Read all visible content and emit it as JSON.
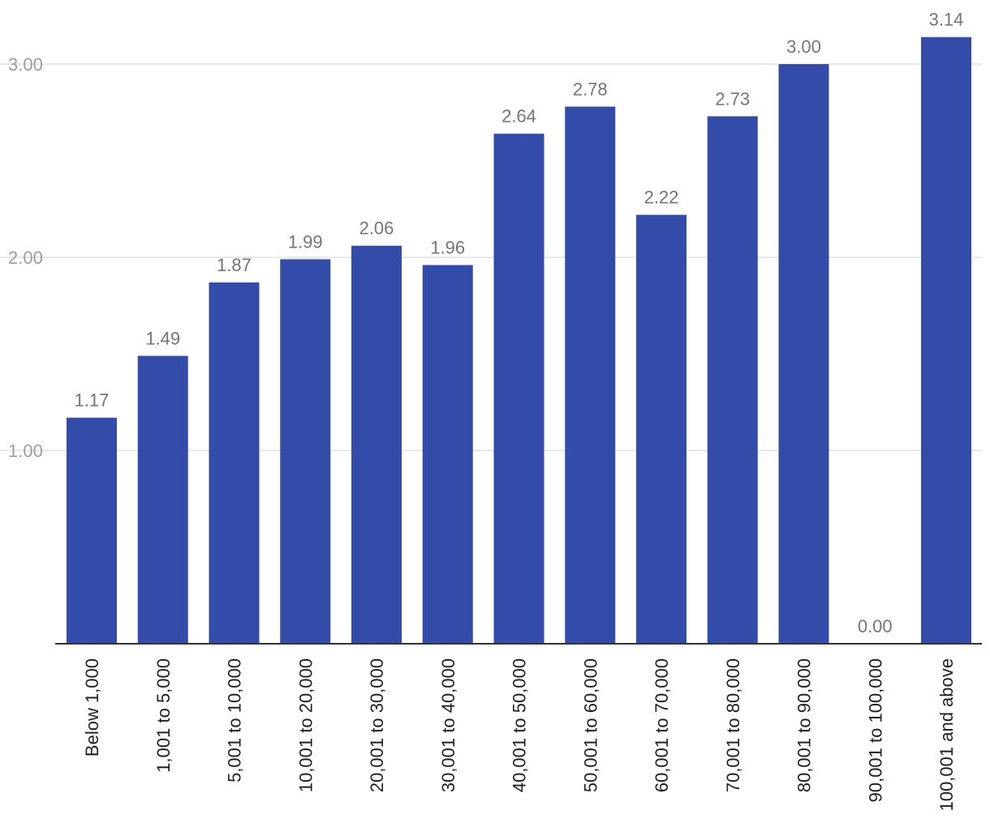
{
  "chart_data": {
    "type": "bar",
    "title": "",
    "xlabel": "",
    "ylabel": "",
    "categories": [
      "Below 1,000",
      "1,001 to 5,000",
      "5,001 to 10,000",
      "10,001 to 20,000",
      "20,001 to 30,000",
      "30,001 to 40,000",
      "40,001 to 50,000",
      "50,001 to 60,000",
      "60,001 to 70,000",
      "70,001 to 80,000",
      "80,001 to 90,000",
      "90,001 to 100,000",
      "100,001 and above"
    ],
    "values": [
      1.17,
      1.49,
      1.87,
      1.99,
      2.06,
      1.96,
      2.64,
      2.78,
      2.22,
      2.73,
      3.0,
      0.0,
      3.14
    ],
    "value_labels": [
      "1.17",
      "1.49",
      "1.87",
      "1.99",
      "2.06",
      "1.96",
      "2.64",
      "2.78",
      "2.22",
      "2.73",
      "3.00",
      "0.00",
      "3.14"
    ],
    "y_ticks": [
      1,
      2,
      3
    ],
    "y_tick_labels": [
      "1.00",
      "2.00",
      "3.00"
    ],
    "ylim": [
      0,
      3.14
    ],
    "grid": true,
    "legend": "none",
    "bar_color": "#334BA9"
  }
}
